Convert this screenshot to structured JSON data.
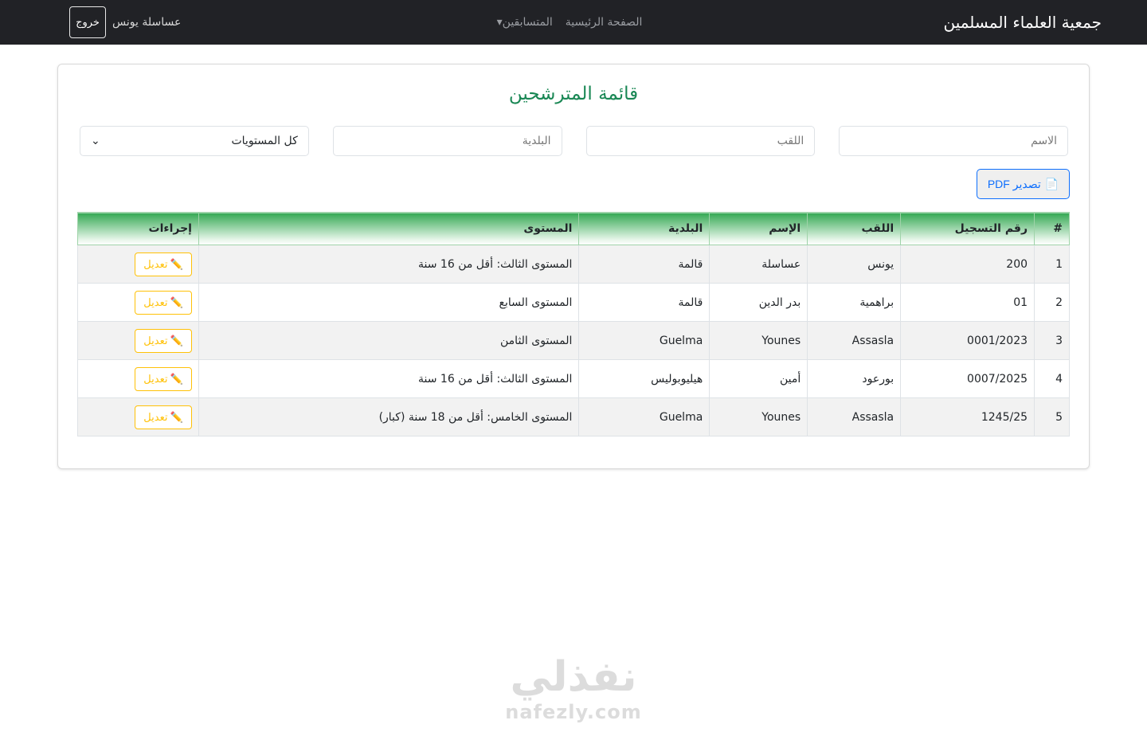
{
  "nav": {
    "brand": "جمعية العلماء المسلمين",
    "home": "الصفحة الرئيسية",
    "contestants": "المتسابقين▾",
    "user": "عساسلة يونس",
    "logout": "خروج"
  },
  "card": {
    "title": "قائمة المترشحين",
    "filters": {
      "name": "الاسم",
      "surname": "اللقب",
      "city": "البلدية",
      "level": "كل المستويات"
    },
    "pdf": "تصدير PDF",
    "headers": [
      "#",
      "رقم التسجيل",
      "اللقب",
      "الإسم",
      "البلدية",
      "المستوى",
      "إجراءات"
    ],
    "edit_label": "تعديل",
    "rows": [
      [
        "1",
        "200",
        "يونس",
        "عساسلة",
        "قالمة",
        "المستوى الثالث: أقل من 16 سنة"
      ],
      [
        "2",
        "01",
        "براهمية",
        "بدر الدين",
        "قالمة",
        "المستوى السابع"
      ],
      [
        "3",
        "0001/2023",
        "Assasla",
        "Younes",
        "Guelma",
        "المستوى الثامن"
      ],
      [
        "4",
        "0007/2025",
        "بورعود",
        "أمين",
        "هيليوبوليس",
        "المستوى الثالث: أقل من 16 سنة"
      ],
      [
        "5",
        "1245/25",
        "Assasla",
        "Younes",
        "Guelma",
        "المستوى الخامس: أقل من 18 سنة (كبار)"
      ]
    ]
  },
  "watermark": {
    "ar": "نفذلي",
    "en": "nafezly.com"
  }
}
